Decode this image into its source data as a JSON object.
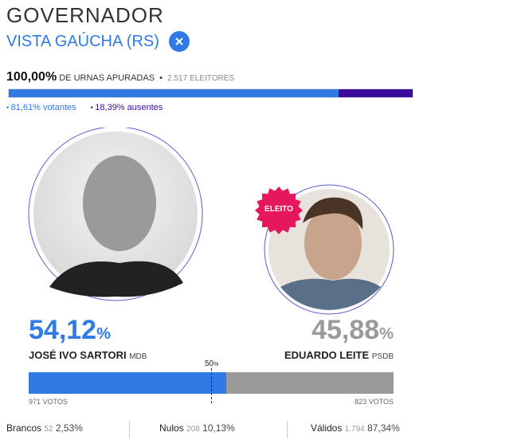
{
  "header": {
    "title": "GOVERNADOR",
    "location": "VISTA GAÚCHA (RS)"
  },
  "summary": {
    "apuradas": "100,00%",
    "apuradas_label": "DE URNAS APURADAS",
    "eleitores": "2.517",
    "eleitores_label": "ELEITORES",
    "turnout": [
      {
        "value": 81.61,
        "label": "81,61%",
        "name": "votantes",
        "color": "#2f7ae5"
      },
      {
        "value": 18.39,
        "label": "18,39%",
        "name": "ausentes",
        "color": "#3b0a9e"
      }
    ]
  },
  "candidates": [
    {
      "name": "JOSÉ IVO SARTORI",
      "party": "MDB",
      "value": 54.12,
      "pct": "54,12",
      "unit": "%",
      "votes": "971 VOTOS",
      "color": "#2f7ae5"
    },
    {
      "name": "EDUARDO LEITE",
      "party": "PSDB",
      "value": 45.88,
      "pct": "45,88",
      "unit": "%",
      "votes": "823 VOTOS",
      "color": "#9a9a9a",
      "badge": "ELEITO"
    }
  ],
  "midpoint": {
    "value": 50,
    "label": "50",
    "unit": "%"
  },
  "totals": [
    {
      "name": "Brancos",
      "count": "52",
      "pct": "2,53%"
    },
    {
      "name": "Nulos",
      "count": "208",
      "pct": "10,13%"
    },
    {
      "name": "Válidos",
      "count": "1.794",
      "pct": "87,34%"
    }
  ]
}
